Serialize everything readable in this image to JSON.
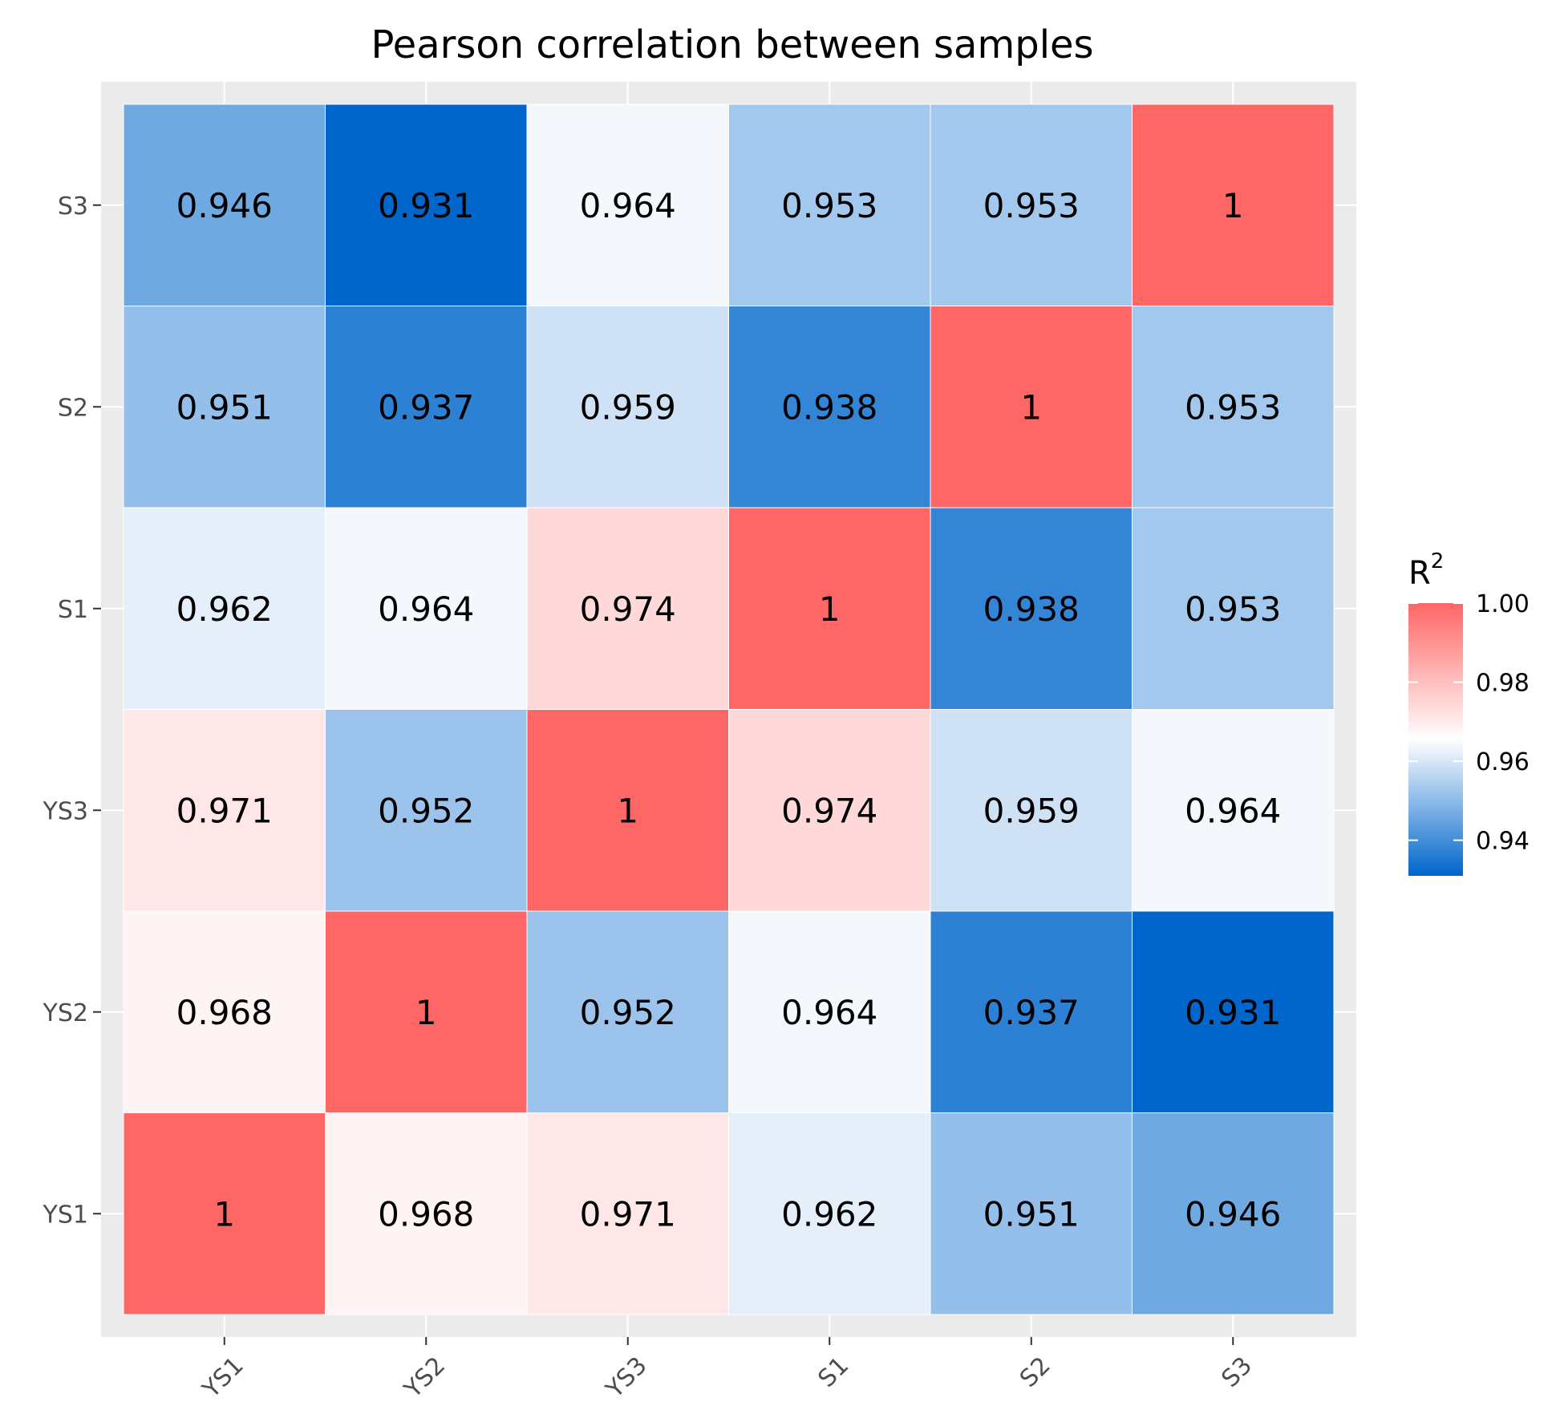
{
  "chart_data": {
    "type": "heatmap",
    "title": "Pearson correlation between samples",
    "x_categories": [
      "YS1",
      "YS2",
      "YS3",
      "S1",
      "S2",
      "S3"
    ],
    "y_categories": [
      "YS1",
      "YS2",
      "YS3",
      "S1",
      "S2",
      "S3"
    ],
    "values": [
      [
        1,
        0.968,
        0.971,
        0.962,
        0.951,
        0.946
      ],
      [
        0.968,
        1,
        0.952,
        0.964,
        0.937,
        0.931
      ],
      [
        0.971,
        0.952,
        1,
        0.974,
        0.959,
        0.964
      ],
      [
        0.962,
        0.964,
        0.974,
        1,
        0.938,
        0.953
      ],
      [
        0.951,
        0.937,
        0.959,
        0.938,
        1,
        0.953
      ],
      [
        0.946,
        0.931,
        0.964,
        0.953,
        0.953,
        1
      ]
    ],
    "labels": [
      [
        "1",
        "0.968",
        "0.971",
        "0.962",
        "0.951",
        "0.946"
      ],
      [
        "0.968",
        "1",
        "0.952",
        "0.964",
        "0.937",
        "0.931"
      ],
      [
        "0.971",
        "0.952",
        "1",
        "0.974",
        "0.959",
        "0.964"
      ],
      [
        "0.962",
        "0.964",
        "0.974",
        "1",
        "0.938",
        "0.953"
      ],
      [
        "0.951",
        "0.937",
        "0.959",
        "0.938",
        "1",
        "0.953"
      ],
      [
        "0.946",
        "0.931",
        "0.964",
        "0.953",
        "0.953",
        "1"
      ]
    ],
    "legend": {
      "title": "R",
      "superscript": "2",
      "range": [
        0.931,
        1.0
      ],
      "midpoint": 0.9655,
      "ticks": [
        1.0,
        0.98,
        0.96,
        0.94
      ],
      "tick_labels": [
        "1.00",
        "0.98",
        "0.96",
        "0.94"
      ],
      "position": "right"
    },
    "colors": {
      "low": "#0066cc",
      "mid": "#ffffff",
      "high": "#ff6666"
    },
    "grid": true
  }
}
